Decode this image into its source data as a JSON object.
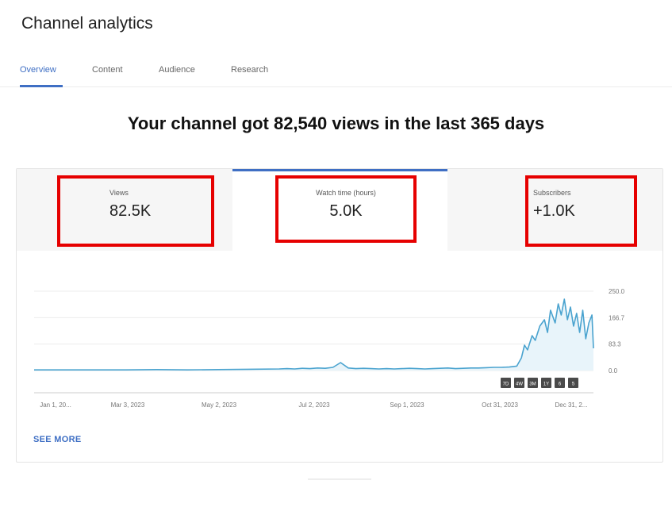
{
  "page": {
    "title": "Channel analytics"
  },
  "tabs": [
    {
      "label": "Overview",
      "active": true
    },
    {
      "label": "Content",
      "active": false
    },
    {
      "label": "Audience",
      "active": false
    },
    {
      "label": "Research",
      "active": false
    }
  ],
  "headline": "Your channel got 82,540 views in the last 365 days",
  "metrics": {
    "views": {
      "label": "Views",
      "value": "82.5K"
    },
    "watch_time": {
      "label": "Watch time (hours)",
      "value": "5.0K"
    },
    "subscribers": {
      "label": "Subscribers",
      "value": "+1.0K"
    }
  },
  "colors": {
    "accent": "#3f6fc4",
    "highlight_box": "#e60000",
    "line": "#4aa3cf",
    "area": "#e8f4fa"
  },
  "chart_data": {
    "type": "line",
    "x_tick_labels": [
      "Jan 1, 20...",
      "Mar 3, 2023",
      "May 2, 2023",
      "Jul 2, 2023",
      "Sep 1, 2023",
      "Oct 31, 2023",
      "Dec 31, 2..."
    ],
    "y_tick_labels": [
      "250.0",
      "166.7",
      "83.3",
      "0.0"
    ],
    "ylim": [
      0,
      250
    ],
    "grid": true,
    "series": [
      {
        "x": [
          0,
          20,
          40,
          60,
          80,
          100,
          120,
          140,
          160,
          165,
          170,
          175,
          180,
          185,
          190,
          195,
          200,
          205,
          210,
          215,
          220,
          225,
          230,
          235,
          240,
          245,
          250,
          255,
          260,
          265,
          270,
          275,
          280,
          285,
          290,
          295,
          300,
          305,
          310,
          315,
          318,
          320,
          322,
          325,
          327,
          330,
          333,
          335,
          337,
          340,
          342,
          344,
          346,
          348,
          350,
          352,
          354,
          356,
          358,
          360,
          362,
          364,
          365
        ],
        "values": [
          2,
          2,
          2,
          2,
          3,
          2,
          3,
          4,
          5,
          6,
          5,
          7,
          6,
          8,
          7,
          10,
          25,
          8,
          6,
          7,
          6,
          5,
          6,
          5,
          6,
          7,
          6,
          5,
          6,
          7,
          8,
          6,
          7,
          8,
          8,
          9,
          10,
          10,
          11,
          14,
          40,
          80,
          65,
          110,
          95,
          140,
          160,
          120,
          190,
          150,
          210,
          175,
          225,
          160,
          200,
          140,
          180,
          120,
          190,
          100,
          150,
          175,
          70
        ]
      }
    ]
  },
  "range_buttons": [
    "7D",
    "4W",
    "3M",
    "1Y",
    "6",
    "5"
  ],
  "see_more_label": "SEE MORE"
}
